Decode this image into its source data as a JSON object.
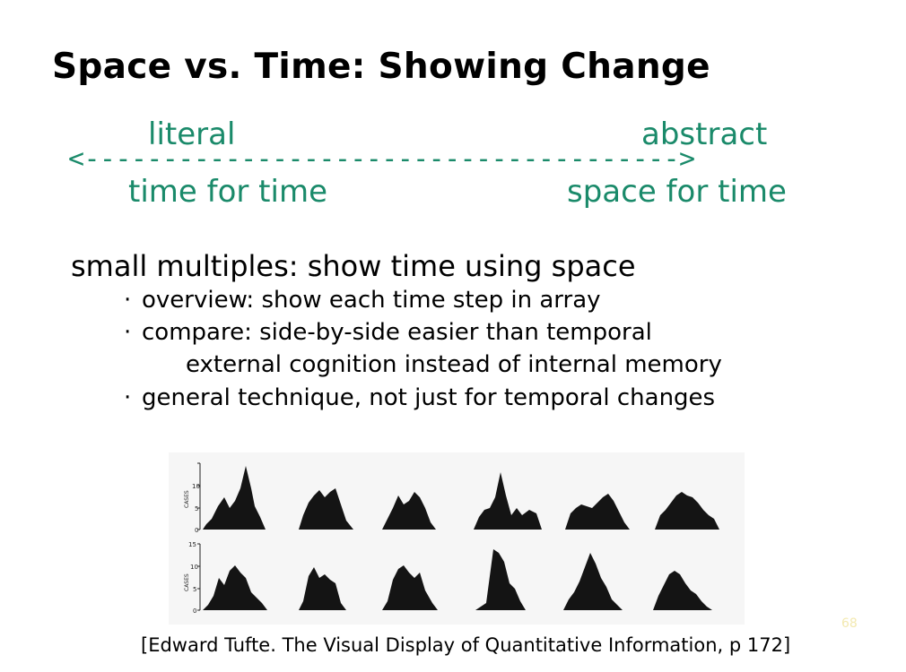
{
  "slide": {
    "title": "Space vs. Time: Showing Change",
    "axis": {
      "left_top": "literal",
      "right_top": "abstract",
      "arrow": "<-------------------------------------->",
      "left_bottom": "time for time",
      "right_bottom": "space for time"
    },
    "heading": "small multiples: show time using space",
    "bullets": [
      {
        "marker": "·",
        "text": "overview: show each time step in array"
      },
      {
        "marker": "·",
        "text": "compare: side-by-side easier than temporal"
      },
      {
        "marker": "",
        "text": "external cognition instead of internal memory"
      },
      {
        "marker": "·",
        "text": "general technique, not just for temporal changes"
      }
    ],
    "figure": {
      "y_label": "CASES",
      "top_ticks": [
        "15",
        "10",
        "5",
        "0"
      ],
      "bottom_ticks": [
        "15",
        "10",
        "5",
        "0"
      ],
      "top_tick_partial": "15"
    },
    "caption": "[Edward Tufte. The Visual Display of Quantitative Information, p 172]",
    "page_number": "68",
    "colors": {
      "accent": "#1a8a6a"
    }
  }
}
